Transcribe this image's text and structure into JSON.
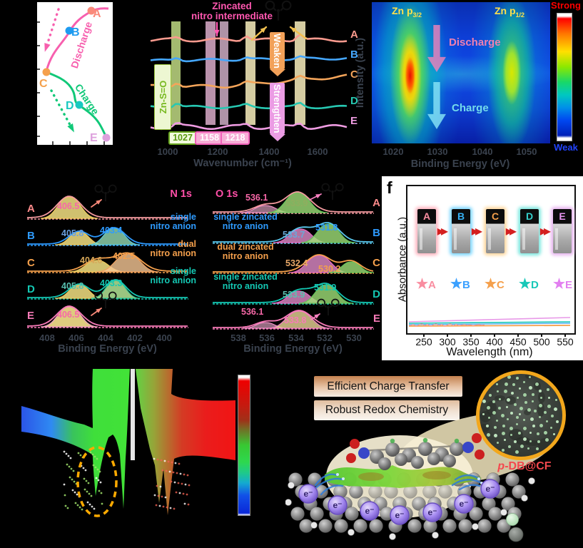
{
  "series_labels": [
    "A",
    "B",
    "C",
    "D",
    "E"
  ],
  "panel_a": {
    "discharge": "Discharge",
    "charge": "Charge"
  },
  "panel_b": {
    "title1": "Zincated",
    "title2": "nitro intermediate",
    "zn_so": "Zn-S=O",
    "weaken": "Weaken",
    "strengthen": "Strengthen",
    "badges": [
      "1027",
      "1158",
      "1218"
    ],
    "x_ticks": [
      "1000",
      "1200",
      "1400",
      "1600"
    ],
    "xlabel": "Wavenumber (cm⁻¹)"
  },
  "panel_c": {
    "peak_left": "Zn p",
    "peak_left_sub": "3/2",
    "peak_right": "Zn p",
    "peak_right_sub": "1/2",
    "discharge": "Discharge",
    "charge": "Charge",
    "ylabel": "Intensity (a.u.)",
    "xlabel": "Binding Energy (eV)",
    "x_ticks": [
      "1020",
      "1030",
      "1040",
      "1050"
    ],
    "strong": "Strong",
    "weak": "Weak"
  },
  "panel_d": {
    "title": "N 1s",
    "xlabel": "Binding Energy (eV)",
    "x_ticks": [
      "408",
      "406",
      "404",
      "402",
      "400"
    ],
    "rows": [
      {
        "v1": "406.5"
      },
      {
        "v1": "405.8",
        "v2": "403.4",
        "a1": "single",
        "a2": "nitro anion"
      },
      {
        "v1": "404.6",
        "v2": "402.5",
        "a1": "dual",
        "a2": "nitro anion"
      },
      {
        "v1": "405.8",
        "v2": "403.3",
        "a1": "single",
        "a2": "nitro anion"
      },
      {
        "v1": "406.5"
      }
    ]
  },
  "panel_e": {
    "title": "O 1s",
    "xlabel": "Binding Energy (eV)",
    "x_ticks": [
      "538",
      "536",
      "534",
      "532",
      "530"
    ],
    "rows": [
      {
        "v1": "536.1",
        "v2": "533.9"
      },
      {
        "v1": "533.7",
        "v2": "531.8",
        "a1": "single zincated",
        "a2": "nitro anion"
      },
      {
        "v1": "532.4",
        "v2": "530.2",
        "a1": "dual zincated",
        "a2": "nitro anion"
      },
      {
        "v1": "533.9",
        "v2": "531.9",
        "a1": "single zincated",
        "a2": "nitro anion"
      },
      {
        "v1": "536.1",
        "v2": "533.8"
      }
    ]
  },
  "panel_f": {
    "label": "f",
    "ylabel": "Absorbance (a.u.)",
    "xlabel": "Wavelength (nm)",
    "x_ticks": [
      "250",
      "300",
      "350",
      "400",
      "450",
      "500",
      "550"
    ]
  },
  "panel_h": {
    "banner1": "Efficient Charge Transfer",
    "banner2": "Robust Redox Chemistry",
    "inset_prefix": "p",
    "inset_rest": "-DB@CF",
    "electron": "e⁻"
  },
  "colors": {
    "a": "#fa8a7a",
    "b": "#2e9bff",
    "c": "#f5a04c",
    "d": "#14c8b4",
    "e": "#ee8ae0",
    "accent_pink": "#f75fae",
    "accent_green": "#10c878"
  }
}
